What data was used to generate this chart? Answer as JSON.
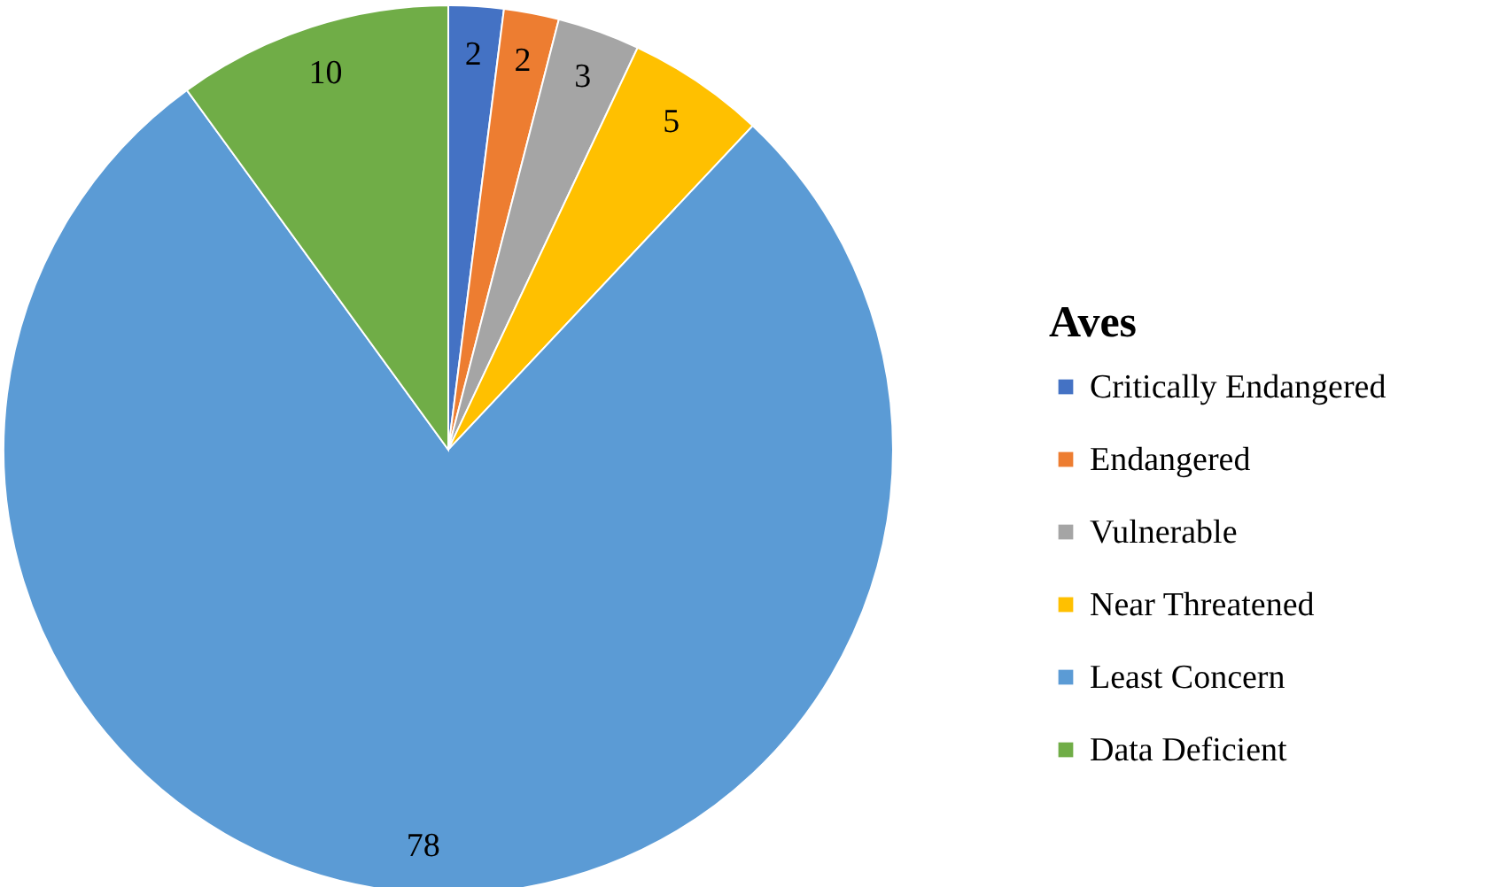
{
  "chart_data": {
    "type": "pie",
    "legend_title": "Aves",
    "legend": "right",
    "data_labels": true,
    "categories": [
      "Critically Endangered",
      "Endangered",
      "Vulnerable",
      "Near Threatened",
      "Least Concern",
      "Data Deficient"
    ],
    "values": [
      2,
      2,
      3,
      5,
      78,
      10
    ],
    "colors": [
      "#4472c4",
      "#ed7d31",
      "#a5a5a5",
      "#ffc000",
      "#5b9bd5",
      "#70ad47"
    ]
  }
}
